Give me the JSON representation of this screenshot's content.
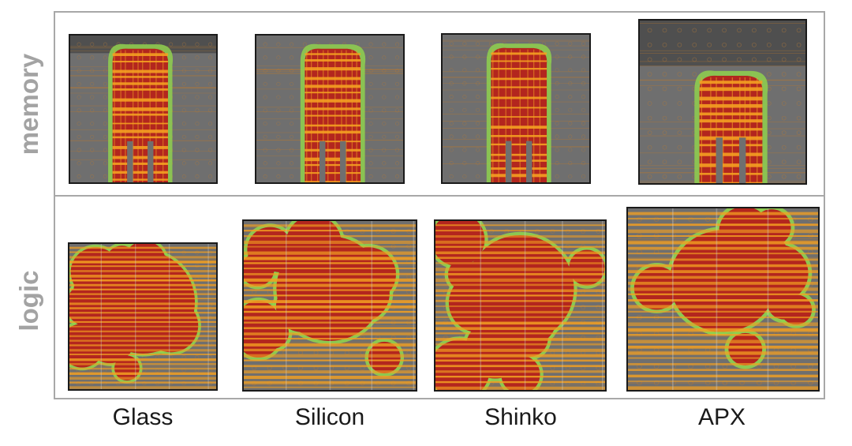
{
  "rows": [
    {
      "label": "memory"
    },
    {
      "label": "logic"
    }
  ],
  "columns": [
    {
      "label": "Glass"
    },
    {
      "label": "Silicon"
    },
    {
      "label": "Shinko"
    },
    {
      "label": "APX"
    }
  ],
  "colors": {
    "frame": "#a8a8a8",
    "label_gray": "#a3a3a3",
    "substrate": "#6f6f6f",
    "route_red": "#b3261e",
    "route_orange": "#f4a021",
    "route_green": "#8fd14f"
  }
}
